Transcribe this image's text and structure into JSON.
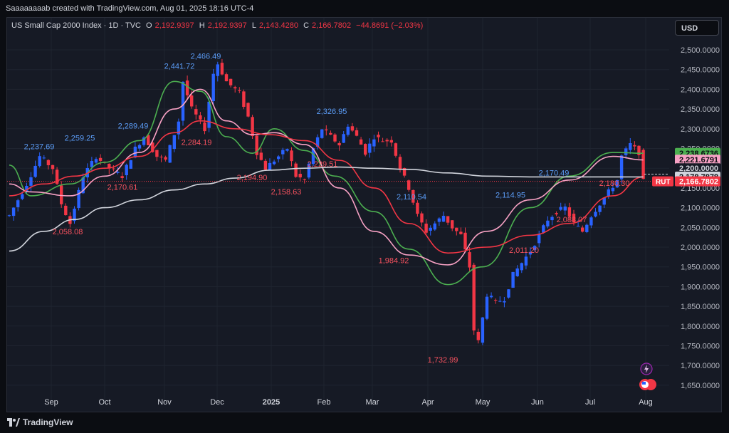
{
  "header": {
    "attribution": "Saaaaaaaab created with TradingView.com, Aug 01, 2025 18:16 UTC-4"
  },
  "legend": {
    "symbol": "US Small Cap 2000 Index · 1D · TVC",
    "open_label": "O",
    "open": "2,192.9397",
    "high_label": "H",
    "high": "2,192.9397",
    "low_label": "L",
    "low": "2,143.4280",
    "close_label": "C",
    "close": "2,166.7802",
    "change": "−44.8691 (−2.03%)"
  },
  "currency_button": "USD",
  "footer": {
    "brand": "TradingView"
  },
  "colors": {
    "up": "#2962ff",
    "down": "#f23645",
    "ma_green": "#4caf50",
    "ma_pink": "#f7a1c4",
    "ma_red": "#f23645",
    "ma_grey": "#d1d4dc",
    "background": "#161a25"
  },
  "chart_data": {
    "type": "candlestick",
    "x_labels": [
      "Sep",
      "Oct",
      "Nov",
      "Dec",
      "2025",
      "Feb",
      "Mar",
      "Apr",
      "May",
      "Jun",
      "Jul",
      "Aug"
    ],
    "y_ticks": [
      "2,500.0000",
      "2,450.0000",
      "2,400.0000",
      "2,350.0000",
      "2,300.0000",
      "2,250.0000",
      "2,200.0000",
      "2,150.0000",
      "2,100.0000",
      "2,050.0000",
      "2,000.0000",
      "1,950.0000",
      "1,900.0000",
      "1,850.0000",
      "1,800.0000",
      "1,750.0000",
      "1,700.0000",
      "1,650.0000"
    ],
    "ylim": [
      1630,
      2525
    ],
    "annotations": [
      {
        "text": "2,237.69",
        "value": 2237.69,
        "kind": "high"
      },
      {
        "text": "2,058.08",
        "value": 2058.08,
        "kind": "low"
      },
      {
        "text": "2,259.25",
        "value": 2259.25,
        "kind": "high"
      },
      {
        "text": "2,170.61",
        "value": 2170.61,
        "kind": "low"
      },
      {
        "text": "2,289.49",
        "value": 2289.49,
        "kind": "high"
      },
      {
        "text": "2,441.72",
        "value": 2441.72,
        "kind": "high"
      },
      {
        "text": "2,466.49",
        "value": 2466.49,
        "kind": "high"
      },
      {
        "text": "2,284.19",
        "value": 2284.19,
        "kind": "low"
      },
      {
        "text": "2,194.90",
        "value": 2194.9,
        "kind": "low"
      },
      {
        "text": "2,158.63",
        "value": 2158.63,
        "kind": "low"
      },
      {
        "text": "2,326.95",
        "value": 2326.95,
        "kind": "high"
      },
      {
        "text": "2,229.51",
        "value": 2229.51,
        "kind": "low"
      },
      {
        "text": "1,984.92",
        "value": 1984.92,
        "kind": "low"
      },
      {
        "text": "2,110.54",
        "value": 2110.54,
        "kind": "high"
      },
      {
        "text": "1,732.99",
        "value": 1732.99,
        "kind": "low"
      },
      {
        "text": "2,114.95",
        "value": 2114.95,
        "kind": "high"
      },
      {
        "text": "2,011.20",
        "value": 2011.2,
        "kind": "low"
      },
      {
        "text": "2,170.49",
        "value": 2170.49,
        "kind": "high"
      },
      {
        "text": "2,088.07",
        "value": 2088.07,
        "kind": "low"
      },
      {
        "text": "2,180.30",
        "value": 2180.3,
        "kind": "low"
      }
    ],
    "price_tags": [
      {
        "text": "2,238.6736",
        "value": 2238.6736,
        "bg": "#4caf50",
        "fg": "#0b0d12"
      },
      {
        "text": "2,221.6791",
        "value": 2221.6791,
        "bg": "#f7a1c4",
        "fg": "#0b0d12"
      },
      {
        "text": "2,200.0000",
        "value": 2200,
        "bg": "#161a25",
        "fg": "#d1d4dc"
      },
      {
        "text": "2,178.7878",
        "value": 2178.7878,
        "bg": "#d1d4dc",
        "fg": "#0b0d12"
      },
      {
        "text": "2,166.7802",
        "value": 2166.7802,
        "bg": "#f23645",
        "fg": "#ffffff",
        "label": "RUT"
      }
    ],
    "ma_series": [
      {
        "color": "#4caf50",
        "points": [
          [
            2208,
            0
          ],
          [
            2130,
            5
          ],
          [
            2160,
            14
          ],
          [
            2215,
            22
          ],
          [
            2270,
            30
          ],
          [
            2420,
            38
          ],
          [
            2395,
            44
          ],
          [
            2280,
            50
          ],
          [
            2238,
            56
          ],
          [
            2300,
            61
          ],
          [
            2245,
            68
          ],
          [
            2180,
            75
          ],
          [
            2090,
            84
          ],
          [
            1995,
            92
          ],
          [
            1905,
            101
          ],
          [
            1950,
            109
          ],
          [
            2100,
            120
          ],
          [
            2180,
            129
          ],
          [
            2240,
            139
          ],
          [
            2238,
            146
          ]
        ]
      },
      {
        "color": "#f7a1c4",
        "points": [
          [
            2160,
            0
          ],
          [
            2140,
            5
          ],
          [
            2130,
            14
          ],
          [
            2180,
            22
          ],
          [
            2240,
            30
          ],
          [
            2350,
            38
          ],
          [
            2400,
            44
          ],
          [
            2320,
            50
          ],
          [
            2285,
            56
          ],
          [
            2290,
            61
          ],
          [
            2260,
            68
          ],
          [
            2150,
            76
          ],
          [
            2040,
            84
          ],
          [
            1980,
            92
          ],
          [
            1955,
            101
          ],
          [
            2040,
            110
          ],
          [
            2120,
            120
          ],
          [
            2170,
            129
          ],
          [
            2230,
            139
          ],
          [
            2221,
            146
          ]
        ]
      },
      {
        "color": "#f23645",
        "points": [
          [
            2130,
            0
          ],
          [
            2160,
            8
          ],
          [
            2180,
            15
          ],
          [
            2200,
            22
          ],
          [
            2230,
            30
          ],
          [
            2290,
            38
          ],
          [
            2320,
            44
          ],
          [
            2300,
            52
          ],
          [
            2285,
            60
          ],
          [
            2270,
            68
          ],
          [
            2220,
            76
          ],
          [
            2150,
            84
          ],
          [
            2060,
            92
          ],
          [
            1985,
            101
          ],
          [
            2000,
            110
          ],
          [
            2030,
            120
          ],
          [
            2060,
            129
          ],
          [
            2130,
            139
          ],
          [
            2178,
            146
          ]
        ]
      },
      {
        "color": "#d1d4dc",
        "points": [
          [
            1990,
            0
          ],
          [
            2040,
            8
          ],
          [
            2070,
            15
          ],
          [
            2100,
            22
          ],
          [
            2120,
            30
          ],
          [
            2145,
            38
          ],
          [
            2160,
            45
          ],
          [
            2175,
            52
          ],
          [
            2195,
            60
          ],
          [
            2200,
            68
          ],
          [
            2203,
            76
          ],
          [
            2200,
            84
          ],
          [
            2197,
            92
          ],
          [
            2188,
            101
          ],
          [
            2180,
            110
          ],
          [
            2178,
            120
          ],
          [
            2178,
            129
          ],
          [
            2178,
            139
          ],
          [
            2178,
            146
          ]
        ]
      }
    ]
  }
}
